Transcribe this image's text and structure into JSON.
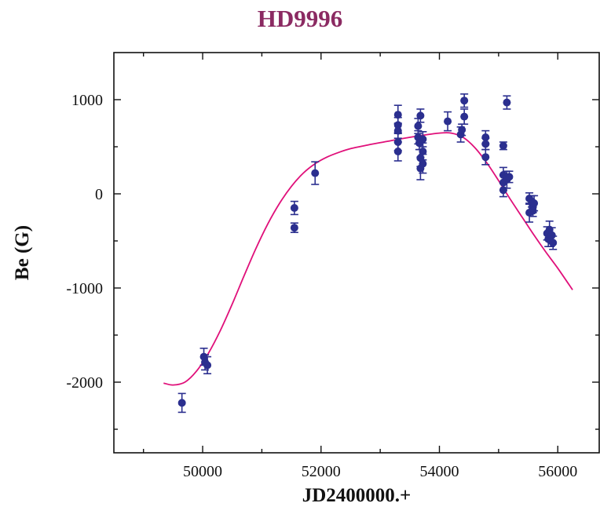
{
  "chart_data": {
    "type": "scatter",
    "title": "HD9996",
    "xlabel": "JD2400000.+",
    "ylabel": "Be (G)",
    "xlim": [
      48500,
      56700
    ],
    "ylim": [
      -2750,
      1500
    ],
    "x_ticks": [
      50000,
      52000,
      54000,
      56000
    ],
    "y_ticks": [
      1000,
      0,
      -1000,
      -2000
    ],
    "grid": false,
    "colors": {
      "points": "#2b2f8f",
      "fit": "#e0107a",
      "title": "#8b2a62"
    },
    "series": [
      {
        "type": "scatter-errorbar",
        "points": [
          {
            "x": 49650,
            "y": -2220,
            "err": 100
          },
          {
            "x": 50020,
            "y": -1730,
            "err": 90
          },
          {
            "x": 50040,
            "y": -1790,
            "err": 80
          },
          {
            "x": 50080,
            "y": -1820,
            "err": 90
          },
          {
            "x": 51550,
            "y": -150,
            "err": 70
          },
          {
            "x": 51550,
            "y": -360,
            "err": 50
          },
          {
            "x": 51900,
            "y": 220,
            "err": 120
          },
          {
            "x": 53300,
            "y": 840,
            "err": 100
          },
          {
            "x": 53300,
            "y": 730,
            "err": 80
          },
          {
            "x": 53300,
            "y": 670,
            "err": 80
          },
          {
            "x": 53300,
            "y": 550,
            "err": 90
          },
          {
            "x": 53300,
            "y": 450,
            "err": 100
          },
          {
            "x": 53640,
            "y": 720,
            "err": 80
          },
          {
            "x": 53640,
            "y": 600,
            "err": 70
          },
          {
            "x": 53660,
            "y": 540,
            "err": 70
          },
          {
            "x": 53680,
            "y": 830,
            "err": 70
          },
          {
            "x": 53680,
            "y": 380,
            "err": 90
          },
          {
            "x": 53680,
            "y": 270,
            "err": 120
          },
          {
            "x": 53720,
            "y": 580,
            "err": 80
          },
          {
            "x": 53720,
            "y": 450,
            "err": 90
          },
          {
            "x": 53720,
            "y": 320,
            "err": 100
          },
          {
            "x": 54140,
            "y": 770,
            "err": 100
          },
          {
            "x": 54360,
            "y": 630,
            "err": 80
          },
          {
            "x": 54380,
            "y": 680,
            "err": 60
          },
          {
            "x": 54420,
            "y": 990,
            "err": 70
          },
          {
            "x": 54420,
            "y": 820,
            "err": 80
          },
          {
            "x": 54780,
            "y": 600,
            "err": 70
          },
          {
            "x": 54780,
            "y": 530,
            "err": 60
          },
          {
            "x": 54780,
            "y": 390,
            "err": 80
          },
          {
            "x": 55080,
            "y": 510,
            "err": 40
          },
          {
            "x": 55080,
            "y": 200,
            "err": 80
          },
          {
            "x": 55080,
            "y": 120,
            "err": 80
          },
          {
            "x": 55080,
            "y": 40,
            "err": 70
          },
          {
            "x": 55140,
            "y": 970,
            "err": 70
          },
          {
            "x": 55140,
            "y": 150,
            "err": 90
          },
          {
            "x": 55180,
            "y": 180,
            "err": 60
          },
          {
            "x": 55520,
            "y": -50,
            "err": 60
          },
          {
            "x": 55520,
            "y": -200,
            "err": 100
          },
          {
            "x": 55560,
            "y": -80,
            "err": 60
          },
          {
            "x": 55580,
            "y": -140,
            "err": 60
          },
          {
            "x": 55580,
            "y": -180,
            "err": 60
          },
          {
            "x": 55600,
            "y": -100,
            "err": 80
          },
          {
            "x": 55820,
            "y": -420,
            "err": 70
          },
          {
            "x": 55840,
            "y": -480,
            "err": 80
          },
          {
            "x": 55860,
            "y": -380,
            "err": 90
          },
          {
            "x": 55880,
            "y": -500,
            "err": 60
          },
          {
            "x": 55900,
            "y": -440,
            "err": 80
          },
          {
            "x": 55920,
            "y": -520,
            "err": 70
          }
        ]
      },
      {
        "type": "line",
        "x": [
          49340,
          49500,
          49700,
          49900,
          50100,
          50300,
          50500,
          50700,
          50900,
          51100,
          51300,
          51500,
          51700,
          51900,
          52100,
          52300,
          52500,
          52800,
          53100,
          53400,
          53700,
          54000,
          54200,
          54400,
          54600,
          54800,
          55000,
          55200,
          55400,
          55600,
          55800,
          56000,
          56250
        ],
        "y": [
          -2010,
          -2030,
          -2000,
          -1880,
          -1690,
          -1450,
          -1170,
          -870,
          -580,
          -320,
          -100,
          80,
          220,
          320,
          390,
          440,
          480,
          520,
          555,
          590,
          620,
          645,
          645,
          600,
          490,
          330,
          140,
          -60,
          -250,
          -440,
          -620,
          -790,
          -1020
        ]
      }
    ]
  }
}
